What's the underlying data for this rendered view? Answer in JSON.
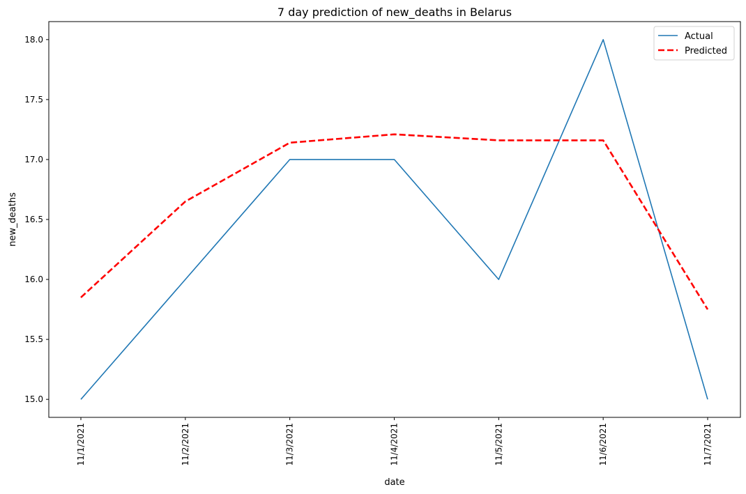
{
  "chart_data": {
    "type": "line",
    "title": "7 day prediction of new_deaths in Belarus",
    "xlabel": "date",
    "ylabel": "new_deaths",
    "categories": [
      "11/1/2021",
      "11/2/2021",
      "11/3/2021",
      "11/4/2021",
      "11/5/2021",
      "11/6/2021",
      "11/7/2021"
    ],
    "yticks": [
      "15.0",
      "15.5",
      "16.0",
      "16.5",
      "17.0",
      "17.5",
      "18.0"
    ],
    "ylim": [
      14.85,
      18.15
    ],
    "grid": false,
    "legend_position": "top-right",
    "series": [
      {
        "name": "Actual",
        "values": [
          15,
          16,
          17,
          17,
          16,
          18,
          15
        ],
        "color": "#1f77b4",
        "style": "solid"
      },
      {
        "name": "Predicted",
        "values": [
          15.85,
          16.65,
          17.14,
          17.21,
          17.16,
          17.16,
          15.75
        ],
        "color": "#ff0000",
        "style": "dashed"
      }
    ]
  }
}
